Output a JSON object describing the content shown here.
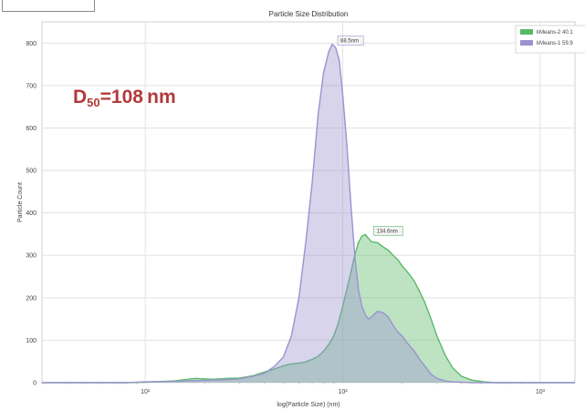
{
  "chart_data": {
    "type": "area",
    "title": "Particle Size Distribution",
    "xlabel": "log(Particle Size) (nm)",
    "ylabel": "Particle Count",
    "xscale": "log",
    "xlim": [
      3,
      1500
    ],
    "ylim": [
      0,
      850
    ],
    "yticks": [
      0,
      100,
      200,
      300,
      400,
      500,
      600,
      700,
      800
    ],
    "xticks": [
      10,
      100,
      1000
    ],
    "xtick_labels": [
      "10¹",
      "10²",
      "10³"
    ],
    "grid": true,
    "legend_position": "top-right",
    "series": [
      {
        "name": "kMeans-2 40.1",
        "color": "#59b96a",
        "x": [
          3,
          8,
          10,
          14,
          18,
          22,
          26,
          30,
          35,
          40,
          45,
          50,
          55,
          60,
          65,
          70,
          75,
          80,
          85,
          90,
          95,
          100,
          105,
          110,
          115,
          120,
          125,
          130,
          135,
          140,
          150,
          160,
          170,
          180,
          190,
          200,
          215,
          230,
          245,
          260,
          280,
          300,
          330,
          360,
          400,
          450,
          520,
          600,
          1500
        ],
        "y": [
          0,
          0,
          1,
          4,
          10,
          8,
          10,
          11,
          16,
          25,
          32,
          40,
          44,
          46,
          49,
          55,
          62,
          74,
          90,
          110,
          140,
          180,
          220,
          260,
          300,
          330,
          345,
          349,
          340,
          332,
          330,
          320,
          312,
          300,
          290,
          275,
          258,
          240,
          215,
          190,
          150,
          110,
          65,
          35,
          15,
          6,
          2,
          0,
          0
        ]
      },
      {
        "name": "kMeans-1 59.9",
        "color": "#9b93cf",
        "x": [
          3,
          8,
          10,
          14,
          18,
          22,
          26,
          30,
          35,
          40,
          45,
          50,
          55,
          60,
          65,
          70,
          75,
          80,
          85,
          88.5,
          92,
          96,
          100,
          105,
          110,
          115,
          120,
          125,
          130,
          135,
          140,
          150,
          160,
          170,
          180,
          190,
          200,
          215,
          230,
          245,
          260,
          280,
          300,
          330,
          360,
          400,
          450,
          520,
          600,
          1500
        ],
        "y": [
          0,
          0,
          2,
          3,
          5,
          6,
          7,
          9,
          15,
          22,
          38,
          60,
          110,
          200,
          330,
          470,
          630,
          730,
          780,
          797,
          790,
          760,
          680,
          560,
          420,
          300,
          220,
          180,
          160,
          150,
          155,
          168,
          165,
          155,
          135,
          120,
          110,
          90,
          75,
          55,
          40,
          20,
          10,
          4,
          2,
          1,
          0,
          0,
          0,
          0
        ]
      }
    ],
    "peak_labels": [
      {
        "text": "88.5nm",
        "x": 88.5,
        "y": 797,
        "series": 1
      },
      {
        "text": "134.6nm",
        "x": 134.6,
        "y": 349,
        "series": 0
      }
    ]
  },
  "annotation": {
    "d_base": "D",
    "d_sub": "50",
    "d_value": "=108 nm"
  }
}
